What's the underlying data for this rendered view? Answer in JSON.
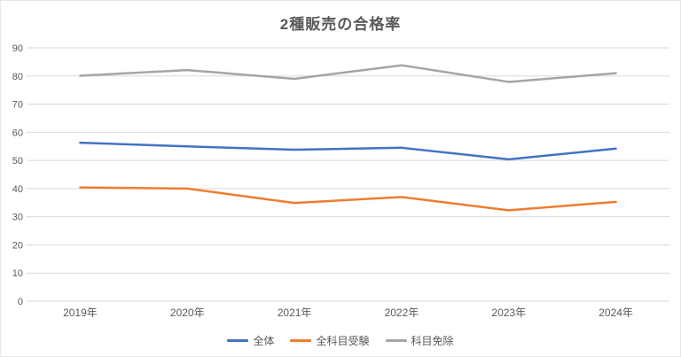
{
  "chart_data": {
    "type": "line",
    "title": "2種販売の合格率",
    "categories": [
      "2019年",
      "2020年",
      "2021年",
      "2022年",
      "2023年",
      "2024年"
    ],
    "series": [
      {
        "name": "全体",
        "color": "#4472C4",
        "values": [
          56.3,
          55.0,
          53.8,
          54.5,
          50.4,
          54.2
        ]
      },
      {
        "name": "全科目受験",
        "color": "#ED7D31",
        "values": [
          40.4,
          40.0,
          34.9,
          37.0,
          32.3,
          35.3
        ]
      },
      {
        "name": "科目免除",
        "color": "#A5A5A5",
        "values": [
          80.1,
          82.1,
          79.0,
          83.8,
          77.9,
          81.0
        ]
      }
    ],
    "xlabel": "",
    "ylabel": "",
    "ylim": [
      0,
      90
    ],
    "ytick_step": 10,
    "grid": "horizontal",
    "legend_position": "bottom",
    "colors": {
      "title_text": "#595959",
      "axis_text": "#595959",
      "gridline": "#D9D9D9",
      "background": "#FFFFFF"
    }
  }
}
